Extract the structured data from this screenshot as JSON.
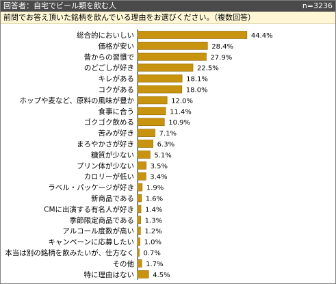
{
  "header": {
    "title": "回答者：自宅でビール類を飲む人",
    "sample_size": "n=3236",
    "question": "前問でお答え頂いた銘柄を飲んでいる理由をお選びください。（複数回答）"
  },
  "colors": {
    "bar": "#c8940f",
    "bar_border": "#8a6508",
    "header_bg": "#4a4a4a",
    "question_bg": "#fff6d6"
  },
  "chart_data": {
    "type": "bar",
    "orientation": "horizontal",
    "categories": [
      "総合的においしい",
      "価格が安い",
      "昔からの習慣で",
      "のどごしが好き",
      "キレがある",
      "コクがある",
      "ホップや麦など、原料の風味が豊か",
      "食事に合う",
      "ゴクゴク飲める",
      "苦みが好き",
      "まろやかさが好き",
      "糖質が少ない",
      "プリン体が少ない",
      "カロリーが低い",
      "ラベル・パッケージが好き",
      "新商品である",
      "CMに出演する有名人が好き",
      "季節限定商品である",
      "アルコール度数が高い",
      "キャンペーンに応募したい",
      "本当は別の銘柄を飲みたいが、仕方なく",
      "その他",
      "特に理由はない"
    ],
    "values": [
      44.4,
      28.4,
      27.9,
      22.5,
      18.1,
      18.0,
      12.0,
      11.4,
      10.9,
      7.1,
      6.3,
      5.1,
      3.5,
      3.4,
      1.9,
      1.6,
      1.4,
      1.3,
      1.2,
      1.0,
      0.7,
      1.7,
      4.5
    ],
    "value_labels": [
      "44.4%",
      "28.4%",
      "27.9%",
      "22.5%",
      "18.1%",
      "18.0%",
      "12.0%",
      "11.4%",
      "10.9%",
      "7.1%",
      "6.3%",
      "5.1%",
      "3.5%",
      "3.4%",
      "1.9%",
      "1.6%",
      "1.4%",
      "1.3%",
      "1.2%",
      "1.0%",
      "0.7%",
      "1.7%",
      "4.5%"
    ],
    "unit": "%",
    "grid": false,
    "legend": "none"
  }
}
